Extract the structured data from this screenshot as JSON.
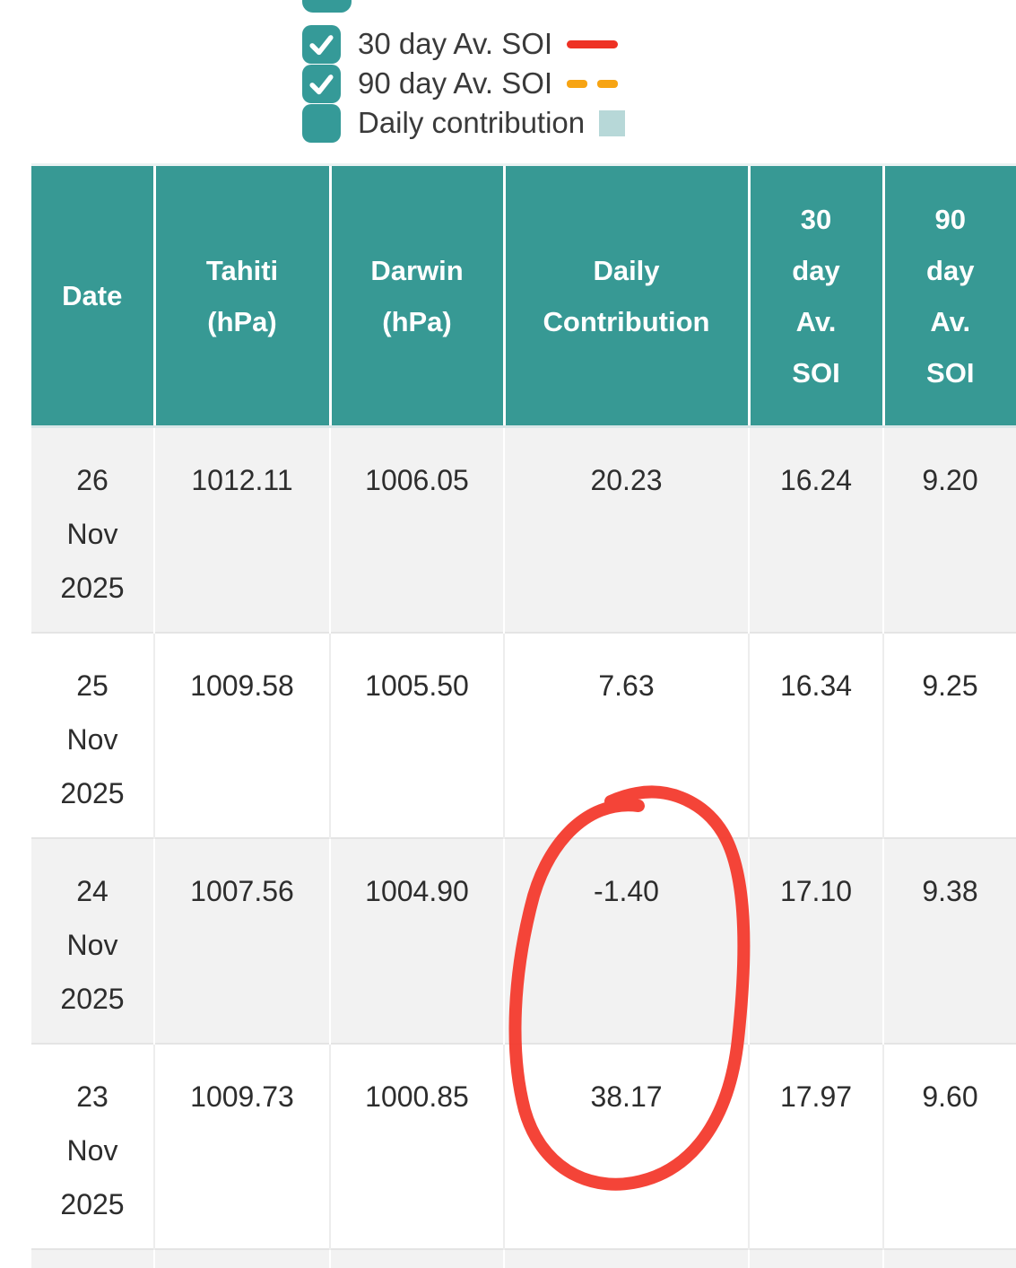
{
  "legend": {
    "items": [
      {
        "label": "30 day Av. SOI",
        "checked": true,
        "swatch": "solid-line",
        "swatch_color": "#ee3124"
      },
      {
        "label": "90 day Av. SOI",
        "checked": true,
        "swatch": "dashed-line",
        "swatch_color": "#f7a413"
      },
      {
        "label": "Daily contribution",
        "checked": false,
        "swatch": "square",
        "swatch_color": "#b7d8d8"
      }
    ],
    "checkbox_color": "#359a98"
  },
  "table": {
    "header_bg": "#379994",
    "row_alt_bg": "#f2f2f2",
    "columns": [
      {
        "label": "Date"
      },
      {
        "label": "Tahiti\n(hPa)"
      },
      {
        "label": "Darwin\n(hPa)"
      },
      {
        "label": "Daily\nContribution"
      },
      {
        "label": "30\nday\nAv.\nSOI"
      },
      {
        "label": "90\nday\nAv.\nSOI"
      }
    ],
    "rows": [
      {
        "date": "26\nNov\n2025",
        "tahiti": "1012.11",
        "darwin": "1006.05",
        "daily": "20.23",
        "av30": "16.24",
        "av90": "9.20"
      },
      {
        "date": "25\nNov\n2025",
        "tahiti": "1009.58",
        "darwin": "1005.50",
        "daily": "7.63",
        "av30": "16.34",
        "av90": "9.25"
      },
      {
        "date": "24\nNov\n2025",
        "tahiti": "1007.56",
        "darwin": "1004.90",
        "daily": "-1.40",
        "av30": "17.10",
        "av90": "9.38"
      },
      {
        "date": "23\nNov\n2025",
        "tahiti": "1009.73",
        "darwin": "1000.85",
        "daily": "38.17",
        "av30": "17.97",
        "av90": "9.60"
      }
    ]
  },
  "annotation": {
    "shape": "hand-drawn-circle",
    "color": "#f43c30",
    "circled_values": [
      "-1.40",
      "38.17"
    ],
    "circled_column": "Daily Contribution"
  }
}
